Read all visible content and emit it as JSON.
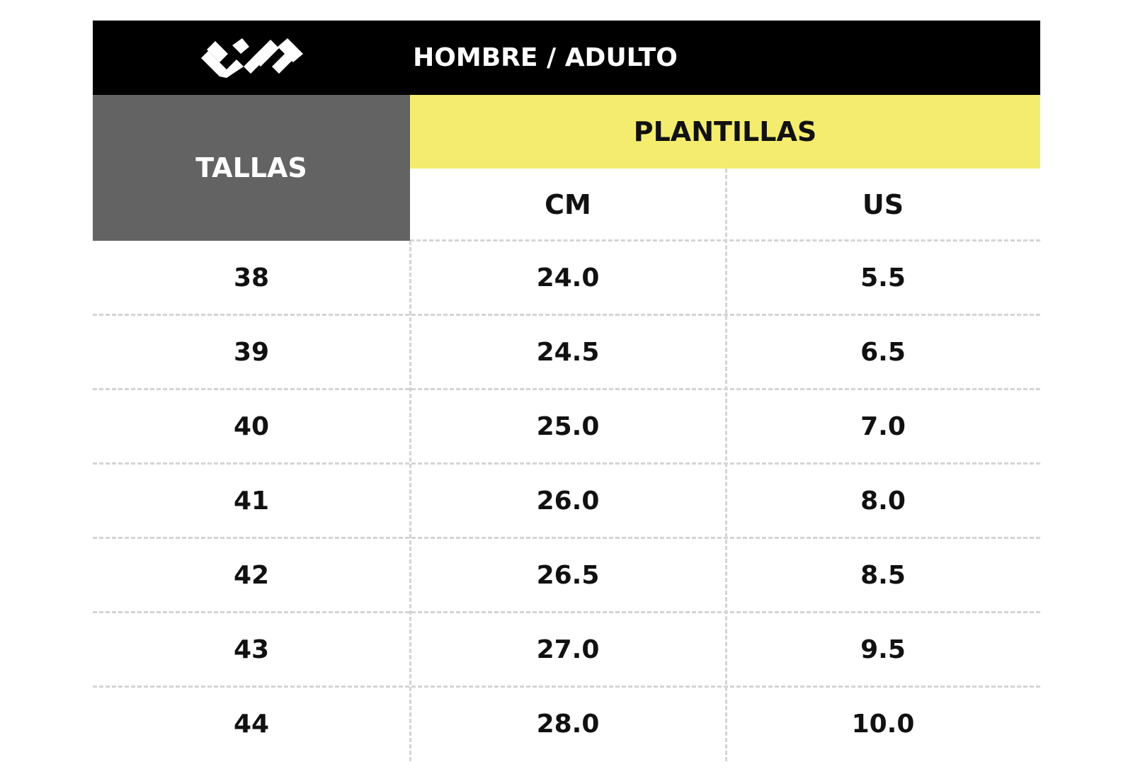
{
  "header": {
    "title": "HOMBRE / ADULTO"
  },
  "table": {
    "size_header": "TALLAS",
    "group_header": "PLANTILLAS",
    "columns": [
      "CM",
      "US"
    ],
    "rows": [
      [
        "38",
        "24.0",
        "5.5"
      ],
      [
        "39",
        "24.5",
        "6.5"
      ],
      [
        "40",
        "25.0",
        "7.0"
      ],
      [
        "41",
        "26.0",
        "8.0"
      ],
      [
        "42",
        "26.5",
        "8.5"
      ],
      [
        "43",
        "27.0",
        "9.5"
      ],
      [
        "44",
        "28.0",
        "10.0"
      ]
    ]
  }
}
